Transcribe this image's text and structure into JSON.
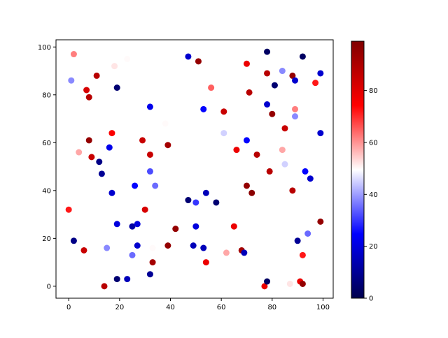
{
  "chart_data": {
    "type": "scatter",
    "colormap": "seismic",
    "xlim": [
      -5,
      104
    ],
    "ylim": [
      -5,
      103
    ],
    "xticks": [
      0,
      20,
      40,
      60,
      80,
      100
    ],
    "yticks": [
      0,
      20,
      40,
      60,
      80,
      100
    ],
    "clim": [
      0,
      99
    ],
    "cticks": [
      0,
      20,
      40,
      60,
      80
    ],
    "series": [
      {
        "x": [
          2,
          1,
          11,
          7,
          8,
          18,
          23,
          19,
          8,
          4,
          9,
          12,
          13,
          17,
          16,
          17,
          0,
          2,
          6,
          15,
          14,
          19,
          23,
          19,
          25,
          27,
          26,
          25,
          27,
          29,
          30,
          32,
          32,
          32,
          34,
          33,
          32,
          33,
          38,
          39,
          39,
          42,
          47,
          51,
          47,
          49,
          50,
          50,
          53,
          53,
          54,
          54,
          56,
          58,
          61,
          61,
          62,
          65,
          66,
          68,
          69,
          70,
          70,
          71,
          70,
          72,
          74,
          77,
          78,
          78,
          78,
          78,
          79,
          80,
          81,
          84,
          84,
          85,
          85,
          87,
          88,
          88,
          89,
          89,
          89,
          90,
          91,
          92,
          92,
          92,
          93,
          94,
          95,
          97,
          99,
          99,
          99
        ],
        "values": [
          97,
          86,
          88,
          82,
          79,
          92,
          95,
          83,
          61,
          56,
          54,
          52,
          47,
          64,
          58,
          39,
          32,
          19,
          15,
          16,
          0,
          3,
          3,
          26,
          25,
          26,
          42,
          13,
          17,
          61,
          32,
          55,
          48,
          75,
          42,
          10,
          5,
          16,
          68,
          59,
          17,
          24,
          96,
          94,
          36,
          17,
          25,
          35,
          74,
          16,
          39,
          10,
          83,
          35,
          73,
          64,
          14,
          25,
          57,
          15,
          14,
          93,
          61,
          81,
          42,
          39,
          55,
          0,
          98,
          89,
          76,
          2,
          48,
          72,
          84,
          90,
          57,
          66,
          51,
          1,
          88,
          40,
          86,
          74,
          71,
          19,
          2,
          96,
          13,
          1,
          48,
          22,
          45,
          85,
          89,
          64,
          27
        ],
        "c": [
          62,
          38,
          88,
          82,
          88,
          52,
          50,
          5,
          95,
          58,
          85,
          8,
          10,
          75,
          22,
          18,
          72,
          8,
          85,
          38,
          88,
          5,
          15,
          20,
          12,
          20,
          25,
          35,
          18,
          85,
          82,
          85,
          32,
          22,
          35,
          92,
          10,
          50,
          50,
          92,
          95,
          95,
          18,
          95,
          5,
          15,
          20,
          30,
          25,
          15,
          15,
          78,
          65,
          5,
          85,
          45,
          58,
          78,
          78,
          92,
          15,
          78,
          25,
          88,
          95,
          97,
          88,
          78,
          3,
          88,
          18,
          3,
          88,
          95,
          5,
          38,
          58,
          85,
          45,
          52,
          95,
          88,
          18,
          62,
          38,
          10,
          78,
          3,
          72,
          95,
          25,
          35,
          18,
          72,
          18,
          18,
          95
        ]
      }
    ]
  }
}
